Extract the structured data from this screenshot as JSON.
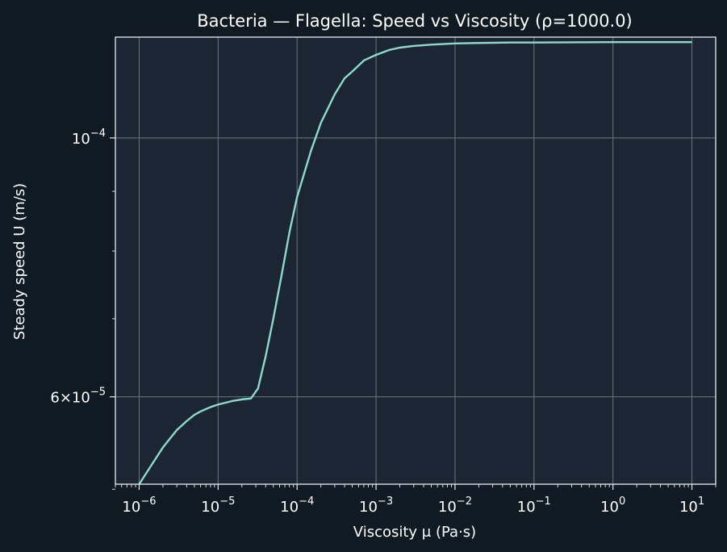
{
  "chart_data": {
    "type": "line",
    "title": "Bacteria — Flagella: Speed vs Viscosity (ρ=1000.0)",
    "xlabel": "Viscosity μ (Pa·s)",
    "ylabel": "Steady speed U (m/s)",
    "xscale": "log",
    "yscale": "log",
    "xlim": [
      5e-07,
      20
    ],
    "ylim": [
      5.05e-05,
      0.000122
    ],
    "grid": true,
    "legend": "none",
    "x_ticks": [
      {
        "value": 1e-06,
        "base": "10",
        "exp": "−6"
      },
      {
        "value": 1e-05,
        "base": "10",
        "exp": "−5"
      },
      {
        "value": 0.0001,
        "base": "10",
        "exp": "−4"
      },
      {
        "value": 0.001,
        "base": "10",
        "exp": "−3"
      },
      {
        "value": 0.01,
        "base": "10",
        "exp": "−2"
      },
      {
        "value": 0.1,
        "base": "10",
        "exp": "−1"
      },
      {
        "value": 1,
        "base": "10",
        "exp": "0"
      },
      {
        "value": 10,
        "base": "10",
        "exp": "1"
      }
    ],
    "y_ticks": [
      {
        "value": 6e-05,
        "base": "6×10",
        "exp": "−5"
      },
      {
        "value": 0.0001,
        "base": "10",
        "exp": "−4"
      }
    ],
    "y_minor_ticks": [
      5e-05,
      7e-05,
      8e-05,
      9e-05
    ],
    "series": [
      {
        "x": [
          1e-06,
          1.5e-06,
          2e-06,
          3e-06,
          4e-06,
          5e-06,
          6e-06,
          8e-06,
          1e-05,
          1.5e-05,
          2e-05,
          2.6e-05,
          3.2e-05,
          4e-05,
          5e-05,
          6.3e-05,
          8e-05,
          0.0001,
          0.00015,
          0.0002,
          0.0003,
          0.0004,
          0.0005,
          0.0007,
          0.001,
          0.0015,
          0.002,
          0.003,
          0.005,
          0.01,
          0.02,
          0.05,
          0.1,
          1,
          10
        ],
        "y": [
          5.05e-05,
          5.27e-05,
          5.43e-05,
          5.62e-05,
          5.72e-05,
          5.79e-05,
          5.83e-05,
          5.88e-05,
          5.91e-05,
          5.95e-05,
          5.97e-05,
          5.98e-05,
          6.1e-05,
          6.5e-05,
          7e-05,
          7.6e-05,
          8.3e-05,
          8.9e-05,
          9.75e-05,
          0.000103,
          0.000109,
          0.0001125,
          0.000114,
          0.0001165,
          0.0001178,
          0.000119,
          0.0001195,
          0.0001199,
          0.0001202,
          0.0001205,
          0.0001206,
          0.0001207,
          0.0001207,
          0.0001208,
          0.0001208
        ],
        "color": "#8fd8cf"
      }
    ]
  },
  "colors": {
    "background": "#101a23",
    "plot_background": "#1b2533",
    "frame": "#e8ecf0",
    "grid": "#66707c",
    "line": "#8fd8cf",
    "text": "#ffffff"
  }
}
